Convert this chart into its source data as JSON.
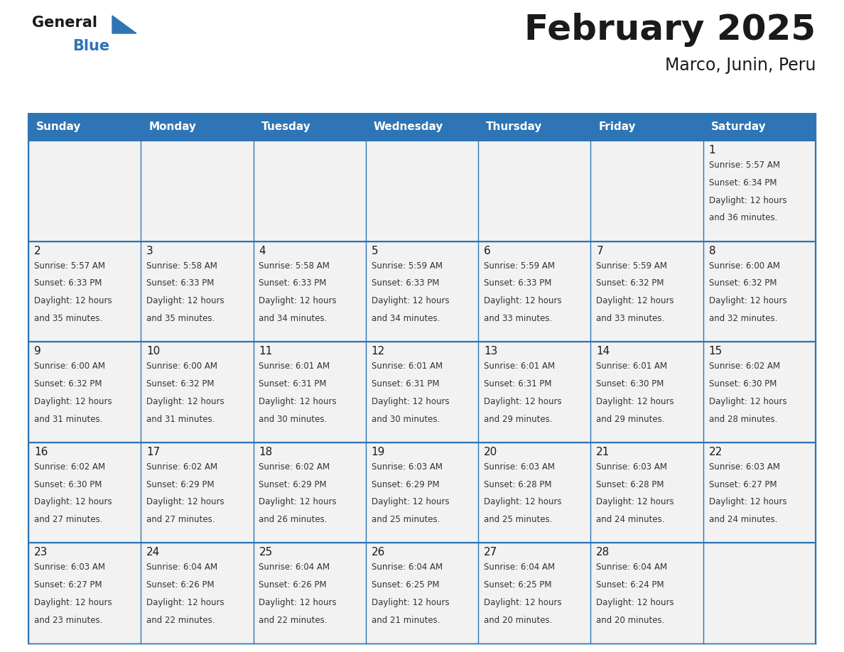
{
  "title": "February 2025",
  "subtitle": "Marco, Junin, Peru",
  "days_of_week": [
    "Sunday",
    "Monday",
    "Tuesday",
    "Wednesday",
    "Thursday",
    "Friday",
    "Saturday"
  ],
  "header_bg_color": "#2E75B6",
  "header_text_color": "#FFFFFF",
  "cell_bg_color": "#F2F2F2",
  "border_color": "#2E75B6",
  "day_number_color": "#1a1a1a",
  "cell_text_color": "#333333",
  "background_color": "#FFFFFF",
  "title_color": "#1a1a1a",
  "subtitle_color": "#1a1a1a",
  "logo_general_color": "#1a1a1a",
  "logo_blue_color": "#2E75B6",
  "calendar_data": [
    [
      null,
      null,
      null,
      null,
      null,
      null,
      1
    ],
    [
      2,
      3,
      4,
      5,
      6,
      7,
      8
    ],
    [
      9,
      10,
      11,
      12,
      13,
      14,
      15
    ],
    [
      16,
      17,
      18,
      19,
      20,
      21,
      22
    ],
    [
      23,
      24,
      25,
      26,
      27,
      28,
      null
    ]
  ],
  "day_info": {
    "1": {
      "sunrise": "5:57 AM",
      "sunset": "6:34 PM",
      "daylight_line1": "Daylight: 12 hours",
      "daylight_line2": "and 36 minutes."
    },
    "2": {
      "sunrise": "5:57 AM",
      "sunset": "6:33 PM",
      "daylight_line1": "Daylight: 12 hours",
      "daylight_line2": "and 35 minutes."
    },
    "3": {
      "sunrise": "5:58 AM",
      "sunset": "6:33 PM",
      "daylight_line1": "Daylight: 12 hours",
      "daylight_line2": "and 35 minutes."
    },
    "4": {
      "sunrise": "5:58 AM",
      "sunset": "6:33 PM",
      "daylight_line1": "Daylight: 12 hours",
      "daylight_line2": "and 34 minutes."
    },
    "5": {
      "sunrise": "5:59 AM",
      "sunset": "6:33 PM",
      "daylight_line1": "Daylight: 12 hours",
      "daylight_line2": "and 34 minutes."
    },
    "6": {
      "sunrise": "5:59 AM",
      "sunset": "6:33 PM",
      "daylight_line1": "Daylight: 12 hours",
      "daylight_line2": "and 33 minutes."
    },
    "7": {
      "sunrise": "5:59 AM",
      "sunset": "6:32 PM",
      "daylight_line1": "Daylight: 12 hours",
      "daylight_line2": "and 33 minutes."
    },
    "8": {
      "sunrise": "6:00 AM",
      "sunset": "6:32 PM",
      "daylight_line1": "Daylight: 12 hours",
      "daylight_line2": "and 32 minutes."
    },
    "9": {
      "sunrise": "6:00 AM",
      "sunset": "6:32 PM",
      "daylight_line1": "Daylight: 12 hours",
      "daylight_line2": "and 31 minutes."
    },
    "10": {
      "sunrise": "6:00 AM",
      "sunset": "6:32 PM",
      "daylight_line1": "Daylight: 12 hours",
      "daylight_line2": "and 31 minutes."
    },
    "11": {
      "sunrise": "6:01 AM",
      "sunset": "6:31 PM",
      "daylight_line1": "Daylight: 12 hours",
      "daylight_line2": "and 30 minutes."
    },
    "12": {
      "sunrise": "6:01 AM",
      "sunset": "6:31 PM",
      "daylight_line1": "Daylight: 12 hours",
      "daylight_line2": "and 30 minutes."
    },
    "13": {
      "sunrise": "6:01 AM",
      "sunset": "6:31 PM",
      "daylight_line1": "Daylight: 12 hours",
      "daylight_line2": "and 29 minutes."
    },
    "14": {
      "sunrise": "6:01 AM",
      "sunset": "6:30 PM",
      "daylight_line1": "Daylight: 12 hours",
      "daylight_line2": "and 29 minutes."
    },
    "15": {
      "sunrise": "6:02 AM",
      "sunset": "6:30 PM",
      "daylight_line1": "Daylight: 12 hours",
      "daylight_line2": "and 28 minutes."
    },
    "16": {
      "sunrise": "6:02 AM",
      "sunset": "6:30 PM",
      "daylight_line1": "Daylight: 12 hours",
      "daylight_line2": "and 27 minutes."
    },
    "17": {
      "sunrise": "6:02 AM",
      "sunset": "6:29 PM",
      "daylight_line1": "Daylight: 12 hours",
      "daylight_line2": "and 27 minutes."
    },
    "18": {
      "sunrise": "6:02 AM",
      "sunset": "6:29 PM",
      "daylight_line1": "Daylight: 12 hours",
      "daylight_line2": "and 26 minutes."
    },
    "19": {
      "sunrise": "6:03 AM",
      "sunset": "6:29 PM",
      "daylight_line1": "Daylight: 12 hours",
      "daylight_line2": "and 25 minutes."
    },
    "20": {
      "sunrise": "6:03 AM",
      "sunset": "6:28 PM",
      "daylight_line1": "Daylight: 12 hours",
      "daylight_line2": "and 25 minutes."
    },
    "21": {
      "sunrise": "6:03 AM",
      "sunset": "6:28 PM",
      "daylight_line1": "Daylight: 12 hours",
      "daylight_line2": "and 24 minutes."
    },
    "22": {
      "sunrise": "6:03 AM",
      "sunset": "6:27 PM",
      "daylight_line1": "Daylight: 12 hours",
      "daylight_line2": "and 24 minutes."
    },
    "23": {
      "sunrise": "6:03 AM",
      "sunset": "6:27 PM",
      "daylight_line1": "Daylight: 12 hours",
      "daylight_line2": "and 23 minutes."
    },
    "24": {
      "sunrise": "6:04 AM",
      "sunset": "6:26 PM",
      "daylight_line1": "Daylight: 12 hours",
      "daylight_line2": "and 22 minutes."
    },
    "25": {
      "sunrise": "6:04 AM",
      "sunset": "6:26 PM",
      "daylight_line1": "Daylight: 12 hours",
      "daylight_line2": "and 22 minutes."
    },
    "26": {
      "sunrise": "6:04 AM",
      "sunset": "6:25 PM",
      "daylight_line1": "Daylight: 12 hours",
      "daylight_line2": "and 21 minutes."
    },
    "27": {
      "sunrise": "6:04 AM",
      "sunset": "6:25 PM",
      "daylight_line1": "Daylight: 12 hours",
      "daylight_line2": "and 20 minutes."
    },
    "28": {
      "sunrise": "6:04 AM",
      "sunset": "6:24 PM",
      "daylight_line1": "Daylight: 12 hours",
      "daylight_line2": "and 20 minutes."
    }
  }
}
